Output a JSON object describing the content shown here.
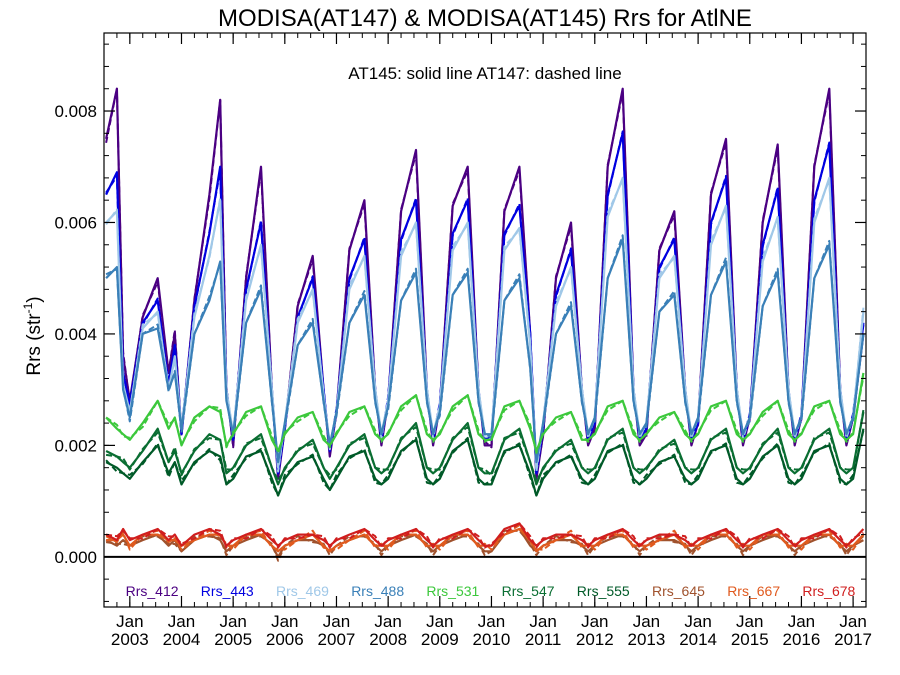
{
  "chart_data": {
    "type": "line",
    "title": "MODISA(AT147) & MODISA(AT145)  Rrs for AtlNE",
    "ylabel": "Rrs (str",
    "ylabel_sup": "-1",
    "ylabel_close": ")",
    "annotation": "AT145: solid line   AT147: dashed line",
    "xlim": [
      2002.5,
      2017.25
    ],
    "ylim": [
      -0.0009,
      0.0094
    ],
    "yticks": [
      0.0,
      0.002,
      0.004,
      0.006,
      0.008
    ],
    "ytick_labels": [
      "0.000",
      "0.002",
      "0.004",
      "0.006",
      "0.008"
    ],
    "xticks": [
      2003,
      2004,
      2005,
      2006,
      2007,
      2008,
      2009,
      2010,
      2011,
      2012,
      2013,
      2014,
      2015,
      2016,
      2017
    ],
    "xtick_month_label": "Jan",
    "xtick_year_labels": [
      "2003",
      "2004",
      "2005",
      "2006",
      "2007",
      "2008",
      "2009",
      "2010",
      "2011",
      "2012",
      "2013",
      "2014",
      "2015",
      "2016",
      "2017"
    ],
    "zero_line": 0.0,
    "legend_position": "bottom-inside",
    "series_shape": {
      "x": [
        2002.54,
        2002.75,
        2002.87,
        2003.0,
        2003.25,
        2003.54,
        2003.75,
        2003.87,
        2004.0,
        2004.25,
        2004.54,
        2004.75,
        2004.87,
        2005.0,
        2005.25,
        2005.54,
        2005.75,
        2005.87,
        2006.0,
        2006.25,
        2006.54,
        2006.75,
        2006.87,
        2007.0,
        2007.25,
        2007.54,
        2007.75,
        2007.87,
        2008.0,
        2008.25,
        2008.54,
        2008.75,
        2008.87,
        2009.0,
        2009.25,
        2009.54,
        2009.75,
        2009.87,
        2010.0,
        2010.25,
        2010.54,
        2010.75,
        2010.87,
        2011.0,
        2011.25,
        2011.54,
        2011.75,
        2011.87,
        2012.0,
        2012.25,
        2012.54,
        2012.75,
        2012.87,
        2013.0,
        2013.25,
        2013.54,
        2013.75,
        2013.87,
        2014.0,
        2014.25,
        2014.54,
        2014.75,
        2014.87,
        2015.0,
        2015.25,
        2015.54,
        2015.75,
        2015.87,
        2016.0,
        2016.25,
        2016.54,
        2016.75,
        2016.87,
        2017.0,
        2017.2
      ]
    },
    "series": [
      {
        "name": "Rrs_412",
        "color": "#4b0082",
        "values": [
          0.0075,
          0.0084,
          0.0036,
          0.0028,
          0.0043,
          0.005,
          0.0033,
          0.004,
          0.0022,
          0.0046,
          0.0065,
          0.0082,
          0.003,
          0.002,
          0.005,
          0.007,
          0.003,
          0.0014,
          0.0023,
          0.0045,
          0.0054,
          0.003,
          0.0018,
          0.0026,
          0.0055,
          0.0064,
          0.003,
          0.002,
          0.0028,
          0.0062,
          0.0073,
          0.003,
          0.002,
          0.0027,
          0.0063,
          0.007,
          0.003,
          0.002,
          0.002,
          0.0062,
          0.007,
          0.004,
          0.0014,
          0.0022,
          0.005,
          0.006,
          0.003,
          0.002,
          0.0023,
          0.007,
          0.0084,
          0.003,
          0.002,
          0.0022,
          0.0055,
          0.0062,
          0.003,
          0.002,
          0.0024,
          0.0065,
          0.0075,
          0.003,
          0.002,
          0.0025,
          0.006,
          0.0074,
          0.003,
          0.002,
          0.0025,
          0.007,
          0.0084,
          0.003,
          0.002,
          0.0025,
          0.004
        ]
      },
      {
        "name": "Rrs_443",
        "color": "#0000e0",
        "values": [
          0.0065,
          0.0069,
          0.0033,
          0.0027,
          0.0042,
          0.0046,
          0.0031,
          0.0038,
          0.0022,
          0.0045,
          0.0058,
          0.007,
          0.003,
          0.0021,
          0.0048,
          0.006,
          0.003,
          0.0015,
          0.0023,
          0.0043,
          0.005,
          0.003,
          0.0019,
          0.0026,
          0.005,
          0.0057,
          0.003,
          0.0021,
          0.0028,
          0.0057,
          0.0064,
          0.003,
          0.0021,
          0.0027,
          0.0058,
          0.0064,
          0.003,
          0.0021,
          0.0021,
          0.0058,
          0.0063,
          0.004,
          0.0015,
          0.0023,
          0.0047,
          0.0055,
          0.003,
          0.0021,
          0.0024,
          0.0065,
          0.0076,
          0.003,
          0.0021,
          0.0023,
          0.0052,
          0.0057,
          0.003,
          0.0021,
          0.0024,
          0.006,
          0.0068,
          0.003,
          0.0021,
          0.0025,
          0.0056,
          0.0066,
          0.003,
          0.0021,
          0.0025,
          0.0064,
          0.0074,
          0.003,
          0.0021,
          0.0025,
          0.0042
        ]
      },
      {
        "name": "Rrs_469",
        "color": "#a0c8e8",
        "values": [
          0.006,
          0.0062,
          0.0031,
          0.0026,
          0.0041,
          0.0044,
          0.003,
          0.0036,
          0.0023,
          0.0043,
          0.0054,
          0.0064,
          0.003,
          0.0022,
          0.0046,
          0.0056,
          0.003,
          0.0016,
          0.0024,
          0.0042,
          0.0048,
          0.0029,
          0.002,
          0.0026,
          0.0048,
          0.0054,
          0.003,
          0.0022,
          0.0028,
          0.0054,
          0.006,
          0.003,
          0.0022,
          0.0027,
          0.0055,
          0.006,
          0.003,
          0.0022,
          0.0022,
          0.0055,
          0.0059,
          0.0038,
          0.0016,
          0.0024,
          0.0045,
          0.0052,
          0.003,
          0.0022,
          0.0025,
          0.0061,
          0.0068,
          0.003,
          0.0022,
          0.0024,
          0.005,
          0.0054,
          0.003,
          0.0022,
          0.0025,
          0.0056,
          0.0063,
          0.003,
          0.0022,
          0.0025,
          0.0053,
          0.0061,
          0.003,
          0.0022,
          0.0025,
          0.006,
          0.0068,
          0.003,
          0.0022,
          0.0025,
          0.0044
        ]
      },
      {
        "name": "Rrs_488",
        "color": "#3a80b8",
        "values": [
          0.005,
          0.0052,
          0.003,
          0.0025,
          0.004,
          0.0041,
          0.003,
          0.0033,
          0.0023,
          0.004,
          0.0046,
          0.0053,
          0.0028,
          0.0022,
          0.0042,
          0.0048,
          0.0028,
          0.0017,
          0.0024,
          0.0038,
          0.0042,
          0.0028,
          0.002,
          0.0026,
          0.0042,
          0.0047,
          0.0028,
          0.0022,
          0.0027,
          0.0046,
          0.0051,
          0.0028,
          0.0022,
          0.0026,
          0.0047,
          0.0051,
          0.0028,
          0.0022,
          0.0022,
          0.0046,
          0.005,
          0.0034,
          0.0017,
          0.0024,
          0.004,
          0.0045,
          0.0028,
          0.0022,
          0.0025,
          0.005,
          0.0057,
          0.0028,
          0.0022,
          0.0024,
          0.0044,
          0.0047,
          0.0028,
          0.0022,
          0.0025,
          0.0047,
          0.0053,
          0.0028,
          0.0022,
          0.0025,
          0.0045,
          0.0051,
          0.0028,
          0.0022,
          0.0025,
          0.005,
          0.0056,
          0.0028,
          0.0022,
          0.0025,
          0.004
        ]
      },
      {
        "name": "Rrs_531",
        "color": "#3cc83c",
        "values": [
          0.0025,
          0.0023,
          0.0022,
          0.0021,
          0.0024,
          0.0028,
          0.0023,
          0.0025,
          0.002,
          0.0025,
          0.0027,
          0.0026,
          0.002,
          0.0022,
          0.0026,
          0.0027,
          0.0021,
          0.0019,
          0.0022,
          0.0025,
          0.0026,
          0.0021,
          0.002,
          0.0022,
          0.0026,
          0.0027,
          0.0022,
          0.0021,
          0.0022,
          0.0027,
          0.0029,
          0.0022,
          0.0021,
          0.0022,
          0.0027,
          0.0029,
          0.0022,
          0.0021,
          0.0021,
          0.0027,
          0.0028,
          0.0023,
          0.0019,
          0.0022,
          0.0025,
          0.0026,
          0.0021,
          0.0021,
          0.0022,
          0.0027,
          0.0028,
          0.0022,
          0.0021,
          0.0022,
          0.0025,
          0.0026,
          0.0022,
          0.0021,
          0.0022,
          0.0027,
          0.0028,
          0.0022,
          0.0021,
          0.0022,
          0.0026,
          0.0028,
          0.0022,
          0.0021,
          0.0022,
          0.0027,
          0.0028,
          0.0022,
          0.0021,
          0.0022,
          0.0033
        ]
      },
      {
        "name": "Rrs_547",
        "color": "#0a6e32",
        "values": [
          0.0019,
          0.0018,
          0.0017,
          0.0016,
          0.0019,
          0.0023,
          0.0017,
          0.0019,
          0.0015,
          0.0019,
          0.0022,
          0.0021,
          0.0015,
          0.0016,
          0.002,
          0.0022,
          0.0016,
          0.0013,
          0.0016,
          0.0019,
          0.0021,
          0.0016,
          0.0014,
          0.0016,
          0.002,
          0.0022,
          0.0016,
          0.0015,
          0.0016,
          0.0021,
          0.0024,
          0.0016,
          0.0015,
          0.0016,
          0.0021,
          0.0024,
          0.0016,
          0.0015,
          0.0015,
          0.0021,
          0.0023,
          0.0017,
          0.0013,
          0.0016,
          0.0019,
          0.0021,
          0.0016,
          0.0015,
          0.0016,
          0.0021,
          0.0023,
          0.0016,
          0.0015,
          0.0016,
          0.0019,
          0.0021,
          0.0016,
          0.0015,
          0.0016,
          0.0021,
          0.0023,
          0.0016,
          0.0015,
          0.0016,
          0.002,
          0.0023,
          0.0016,
          0.0015,
          0.0016,
          0.0021,
          0.0023,
          0.0016,
          0.0015,
          0.0016,
          0.0026
        ]
      },
      {
        "name": "Rrs_555",
        "color": "#005a28",
        "values": [
          0.0017,
          0.0016,
          0.0015,
          0.0014,
          0.0017,
          0.002,
          0.0015,
          0.0017,
          0.0013,
          0.0017,
          0.0019,
          0.0018,
          0.0013,
          0.0014,
          0.0018,
          0.0019,
          0.0014,
          0.0011,
          0.0014,
          0.0017,
          0.0018,
          0.0014,
          0.0012,
          0.0014,
          0.0018,
          0.0019,
          0.0014,
          0.0013,
          0.0014,
          0.0019,
          0.0021,
          0.0014,
          0.0013,
          0.0014,
          0.0019,
          0.0021,
          0.0014,
          0.0013,
          0.0013,
          0.0019,
          0.002,
          0.0015,
          0.0011,
          0.0014,
          0.0017,
          0.0018,
          0.0014,
          0.0013,
          0.0014,
          0.0019,
          0.002,
          0.0014,
          0.0013,
          0.0014,
          0.0017,
          0.0018,
          0.0014,
          0.0013,
          0.0014,
          0.0019,
          0.002,
          0.0014,
          0.0013,
          0.0014,
          0.0018,
          0.002,
          0.0014,
          0.0013,
          0.0014,
          0.0019,
          0.002,
          0.0014,
          0.0013,
          0.0014,
          0.0023
        ]
      },
      {
        "name": "Rrs_645",
        "color": "#a0522d",
        "values": [
          0.0003,
          0.0002,
          0.0003,
          0.0002,
          0.0003,
          0.0004,
          0.0002,
          0.0003,
          0.0001,
          0.0003,
          0.0004,
          0.0003,
          0.0001,
          0.0002,
          0.0003,
          0.0004,
          0.0002,
          0.0,
          0.0002,
          0.0003,
          0.0003,
          0.0002,
          0.0001,
          0.0002,
          0.0003,
          0.0004,
          0.0002,
          0.0001,
          0.0002,
          0.0003,
          0.0004,
          0.0002,
          0.0001,
          0.0002,
          0.0003,
          0.0004,
          0.0002,
          0.0001,
          0.0001,
          0.0004,
          0.0005,
          0.0002,
          0.0001,
          0.0002,
          0.0003,
          0.0003,
          0.0002,
          0.0001,
          0.0002,
          0.0003,
          0.0004,
          0.0002,
          0.0001,
          0.0002,
          0.0003,
          0.0003,
          0.0002,
          0.0001,
          0.0002,
          0.0003,
          0.0004,
          0.0002,
          0.0001,
          0.0002,
          0.0003,
          0.0004,
          0.0002,
          0.0001,
          0.0002,
          0.0003,
          0.0004,
          0.0002,
          0.0001,
          0.0002,
          0.0003
        ]
      },
      {
        "name": "Rrs_667",
        "color": "#e05a1e",
        "values": [
          0.0003,
          0.0003,
          0.0004,
          0.0002,
          0.0004,
          0.0004,
          0.0003,
          0.0003,
          0.0002,
          0.0003,
          0.0004,
          0.0004,
          0.0002,
          0.0002,
          0.0004,
          0.0004,
          0.0002,
          0.0001,
          0.0002,
          0.0003,
          0.0004,
          0.0002,
          0.0001,
          0.0002,
          0.0003,
          0.0004,
          0.0002,
          0.0002,
          0.0002,
          0.0004,
          0.0004,
          0.0002,
          0.0002,
          0.0002,
          0.0004,
          0.0004,
          0.0002,
          0.0002,
          0.0002,
          0.0004,
          0.0005,
          0.0003,
          0.0001,
          0.0002,
          0.0003,
          0.0004,
          0.0002,
          0.0002,
          0.0002,
          0.0004,
          0.0004,
          0.0002,
          0.0002,
          0.0002,
          0.0003,
          0.0004,
          0.0002,
          0.0002,
          0.0002,
          0.0004,
          0.0004,
          0.0002,
          0.0002,
          0.0002,
          0.0004,
          0.0004,
          0.0002,
          0.0002,
          0.0002,
          0.0004,
          0.0004,
          0.0002,
          0.0002,
          0.0002,
          0.0004
        ]
      },
      {
        "name": "Rrs_678",
        "color": "#d01e1e",
        "values": [
          0.0004,
          0.0003,
          0.0005,
          0.0003,
          0.0004,
          0.0005,
          0.0003,
          0.0004,
          0.0002,
          0.0004,
          0.0005,
          0.0004,
          0.0002,
          0.0003,
          0.0004,
          0.0005,
          0.0003,
          0.0002,
          0.0003,
          0.0004,
          0.0004,
          0.0003,
          0.0002,
          0.0003,
          0.0004,
          0.0005,
          0.0003,
          0.0002,
          0.0003,
          0.0004,
          0.0005,
          0.0003,
          0.0002,
          0.0003,
          0.0004,
          0.0005,
          0.0003,
          0.0002,
          0.0002,
          0.0005,
          0.0006,
          0.0003,
          0.0002,
          0.0003,
          0.0004,
          0.0004,
          0.0003,
          0.0002,
          0.0003,
          0.0004,
          0.0005,
          0.0003,
          0.0002,
          0.0003,
          0.0004,
          0.0004,
          0.0003,
          0.0002,
          0.0003,
          0.0004,
          0.0005,
          0.0003,
          0.0002,
          0.0003,
          0.0004,
          0.0005,
          0.0003,
          0.0002,
          0.0003,
          0.0004,
          0.0005,
          0.0003,
          0.0002,
          0.0003,
          0.0005
        ]
      }
    ]
  }
}
